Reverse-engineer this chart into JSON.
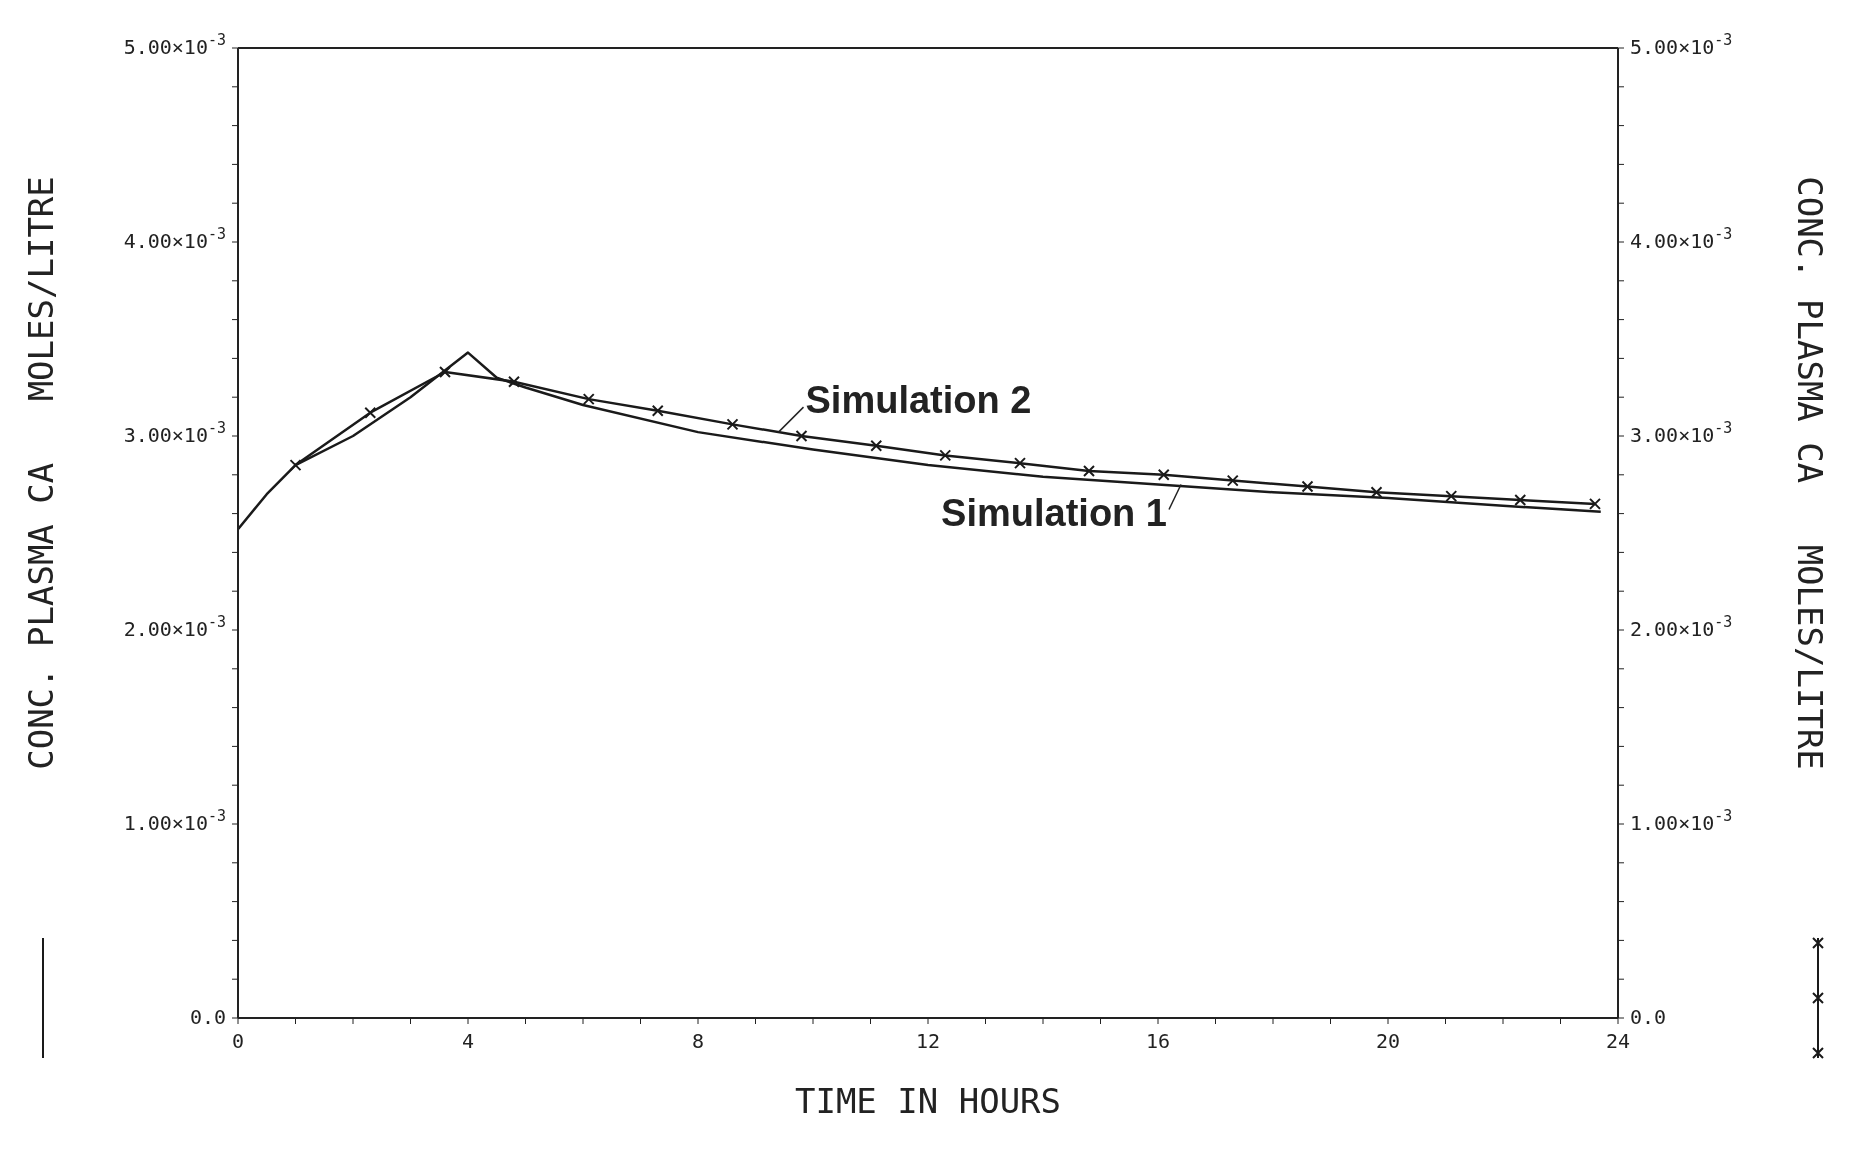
{
  "chart_data": {
    "type": "line",
    "xlabel": "TIME IN HOURS",
    "ylabel": "CONC. PLASMA CA   MOLES/LITRE",
    "y2label": "CONC. PLASMA CA   MOLES/LITRE",
    "xlim": [
      0,
      24
    ],
    "xticks": [
      0,
      {
        "value": 1,
        "label": null
      },
      {
        "value": 2,
        "label": null
      },
      {
        "value": 3,
        "label": null
      },
      4,
      {
        "value": 5,
        "label": null
      },
      {
        "value": 6,
        "label": null
      },
      {
        "value": 7,
        "label": null
      },
      8,
      {
        "value": 9,
        "label": null
      },
      {
        "value": 10,
        "label": null
      },
      {
        "value": 11,
        "label": null
      },
      12,
      {
        "value": 13,
        "label": null
      },
      {
        "value": 14,
        "label": null
      },
      {
        "value": 15,
        "label": null
      },
      16,
      {
        "value": 17,
        "label": null
      },
      {
        "value": 18,
        "label": null
      },
      {
        "value": 19,
        "label": null
      },
      20,
      {
        "value": 21,
        "label": null
      },
      {
        "value": 22,
        "label": null
      },
      {
        "value": 23,
        "label": null
      },
      24
    ],
    "ylim": [
      0,
      0.005
    ],
    "yticks": [
      {
        "value": 0,
        "label": "0.0"
      },
      {
        "value": 0.0002,
        "label": null
      },
      {
        "value": 0.0004,
        "label": null
      },
      {
        "value": 0.0006,
        "label": null
      },
      {
        "value": 0.0008,
        "label": null
      },
      {
        "value": 0.001,
        "label": "1.00×10$^{-3}$"
      },
      {
        "value": 0.0012,
        "label": null
      },
      {
        "value": 0.0014,
        "label": null
      },
      {
        "value": 0.0016,
        "label": null
      },
      {
        "value": 0.0018,
        "label": null
      },
      {
        "value": 0.002,
        "label": "2.00×10$^{-3}$"
      },
      {
        "value": 0.0022,
        "label": null
      },
      {
        "value": 0.0024,
        "label": null
      },
      {
        "value": 0.0026,
        "label": null
      },
      {
        "value": 0.0028,
        "label": null
      },
      {
        "value": 0.003,
        "label": "3.00×10$^{-3}$"
      },
      {
        "value": 0.0032,
        "label": null
      },
      {
        "value": 0.0034,
        "label": null
      },
      {
        "value": 0.0036,
        "label": null
      },
      {
        "value": 0.0038,
        "label": null
      },
      {
        "value": 0.004,
        "label": "4.00×10$^{-3}$"
      },
      {
        "value": 0.0042,
        "label": null
      },
      {
        "value": 0.0044,
        "label": null
      },
      {
        "value": 0.0046,
        "label": null
      },
      {
        "value": 0.0048,
        "label": null
      },
      {
        "value": 0.005,
        "label": "5.00×10$^{-3}$"
      }
    ],
    "y2lim": [
      0,
      0.005
    ],
    "y2ticks": [
      {
        "value": 0,
        "label": "0.0"
      },
      {
        "value": 0.0002,
        "label": null
      },
      {
        "value": 0.0004,
        "label": null
      },
      {
        "value": 0.0006,
        "label": null
      },
      {
        "value": 0.0008,
        "label": null
      },
      {
        "value": 0.001,
        "label": "1.00×10$^{-3}$"
      },
      {
        "value": 0.0012,
        "label": null
      },
      {
        "value": 0.0014,
        "label": null
      },
      {
        "value": 0.0016,
        "label": null
      },
      {
        "value": 0.0018,
        "label": null
      },
      {
        "value": 0.002,
        "label": "2.00×10$^{-3}$"
      },
      {
        "value": 0.0022,
        "label": null
      },
      {
        "value": 0.0024,
        "label": null
      },
      {
        "value": 0.0026,
        "label": null
      },
      {
        "value": 0.0028,
        "label": null
      },
      {
        "value": 0.003,
        "label": "3.00×10$^{-3}$"
      },
      {
        "value": 0.0032,
        "label": null
      },
      {
        "value": 0.0034,
        "label": null
      },
      {
        "value": 0.0036,
        "label": null
      },
      {
        "value": 0.0038,
        "label": null
      },
      {
        "value": 0.004,
        "label": "4.00×10$^{-3}$"
      },
      {
        "value": 0.0042,
        "label": null
      },
      {
        "value": 0.0044,
        "label": null
      },
      {
        "value": 0.0046,
        "label": null
      },
      {
        "value": 0.0048,
        "label": null
      },
      {
        "value": 0.005,
        "label": "5.00×10$^{-3}$"
      }
    ],
    "grid": false,
    "line_style": "solid",
    "series": [
      {
        "color": "#1a1a1a",
        "marker": "none",
        "x": [
          0,
          0.5,
          1,
          2,
          3,
          4,
          4.5,
          5,
          6,
          8,
          10,
          12,
          14,
          16,
          18,
          20,
          22,
          23.7
        ],
        "values": [
          0.00252,
          0.0027,
          0.00285,
          0.003,
          0.0032,
          0.00343,
          0.0033,
          0.00325,
          0.00316,
          0.00302,
          0.00293,
          0.00285,
          0.00279,
          0.00275,
          0.00271,
          0.00268,
          0.00264,
          0.00261
        ]
      },
      {
        "color": "#1a1a1a",
        "marker": "cross",
        "x": [
          1,
          2.3,
          3.6,
          4.8,
          6.1,
          7.3,
          8.6,
          9.8,
          11.1,
          12.3,
          13.6,
          14.8,
          16.1,
          17.3,
          18.6,
          19.8,
          21.1,
          22.3,
          23.6
        ],
        "values": [
          0.00285,
          0.00312,
          0.00333,
          0.00328,
          0.00319,
          0.00313,
          0.00306,
          0.003,
          0.00295,
          0.0029,
          0.00286,
          0.00282,
          0.0028,
          0.00277,
          0.00274,
          0.00271,
          0.00269,
          0.00267,
          0.00265
        ]
      }
    ],
    "annotations": [
      {
        "text": "Simulation 2",
        "x": 9.4,
        "y": 0.00302
      },
      {
        "text": "Simulation 1",
        "x": 16.4,
        "y": 0.00275
      }
    ]
  }
}
